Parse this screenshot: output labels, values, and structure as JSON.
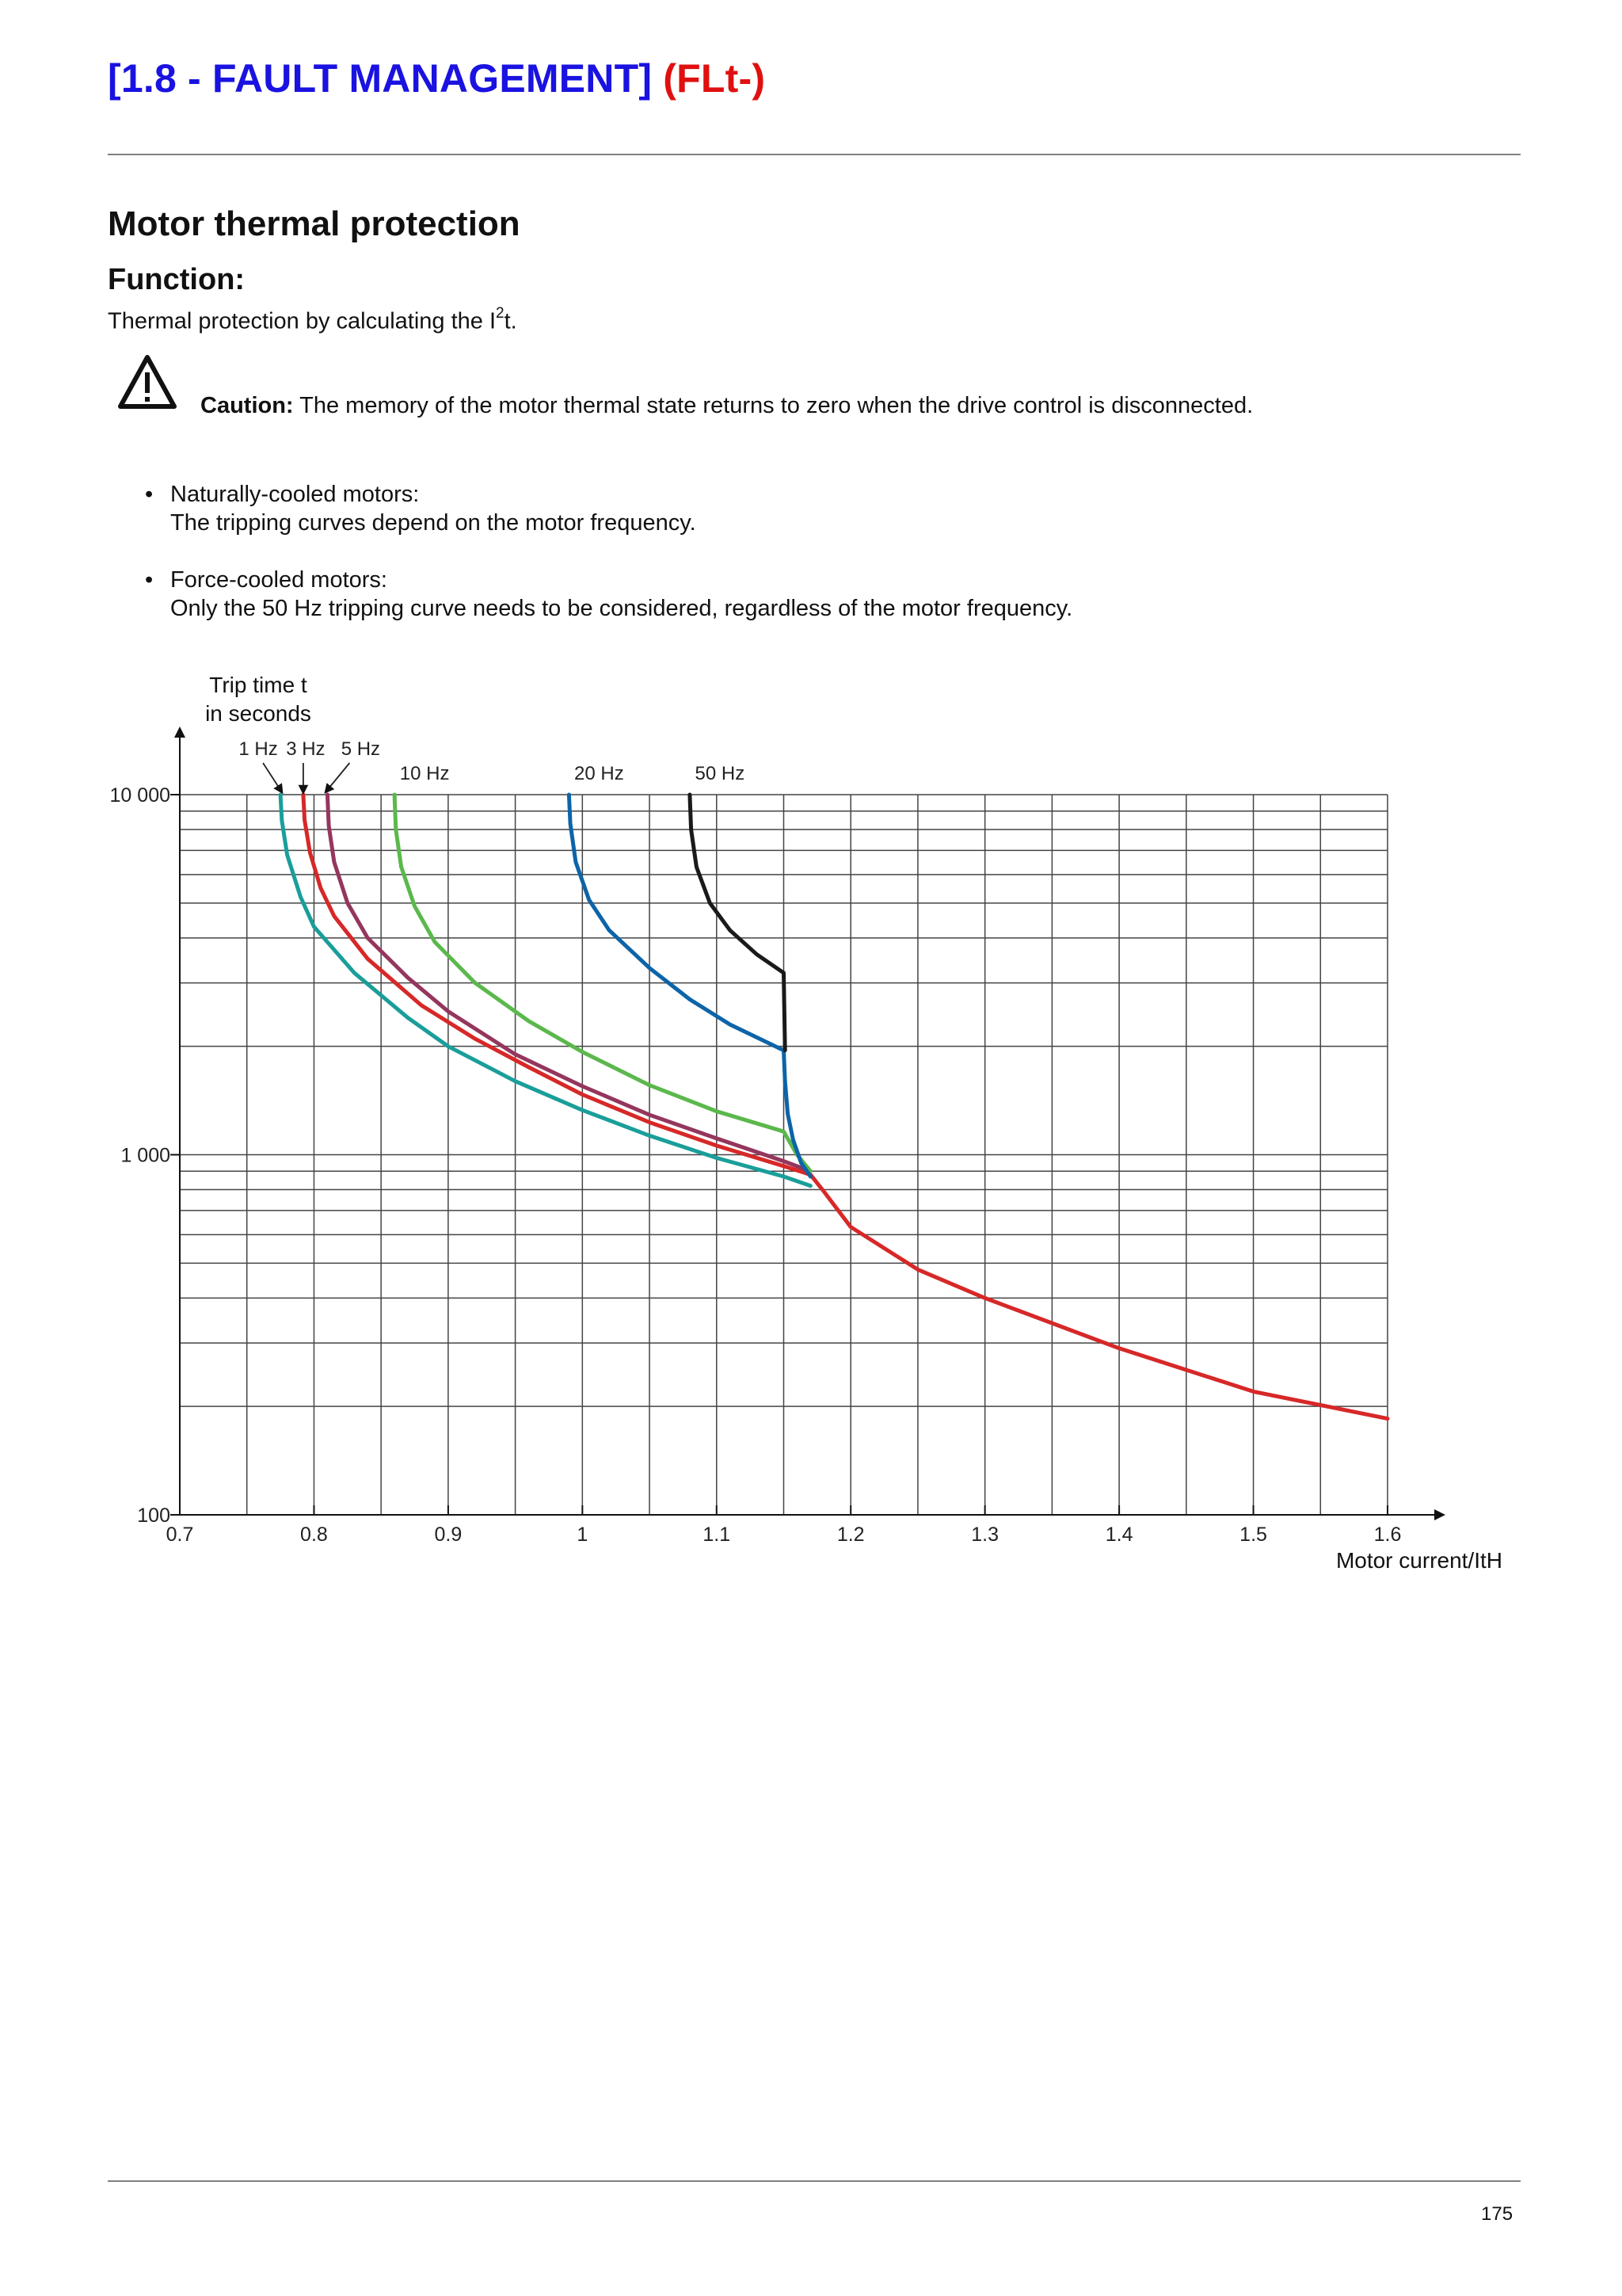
{
  "header": {
    "title_main": "[1.8 - FAULT MANAGEMENT]",
    "title_code": "(FLt-)"
  },
  "section": {
    "title": "Motor thermal protection",
    "function_heading": "Function:",
    "function_text_before": "Thermal protection by calculating the I",
    "function_text_sup": "2",
    "function_text_after": "t."
  },
  "caution": {
    "icon": "warning-triangle-icon",
    "label": "Caution:",
    "text": " The memory of the motor thermal state returns to zero when the drive control is disconnected."
  },
  "bullets": [
    {
      "title": "Naturally-cooled motors:",
      "text": "The tripping curves depend on the motor frequency."
    },
    {
      "title": "Force-cooled motors:",
      "text": "Only the 50 Hz tripping curve needs to be considered, regardless of the motor frequency."
    }
  ],
  "chart_data": {
    "type": "line",
    "ylabel_line1": "Trip time t",
    "ylabel_line2": "in seconds",
    "xlabel": "Motor current/ItH",
    "y_scale": "log",
    "xlim": [
      0.7,
      1.6
    ],
    "ylim": [
      100,
      10000
    ],
    "grid": true,
    "x_tick_labels": [
      "0.7",
      "0.8",
      "0.9",
      "1",
      "1.1",
      "1.2",
      "1.3",
      "1.4",
      "1.5",
      "1.6"
    ],
    "x_tick_values": [
      0.7,
      0.8,
      0.9,
      1.0,
      1.1,
      1.2,
      1.3,
      1.4,
      1.5,
      1.6
    ],
    "y_tick_labels": [
      "100",
      "1 000",
      "10 000"
    ],
    "y_tick_values": [
      100,
      1000,
      10000
    ],
    "series": [
      {
        "name": "1 Hz",
        "color": "#1a9e9a",
        "x": [
          0.775,
          0.776,
          0.78,
          0.79,
          0.8,
          0.83,
          0.87,
          0.9,
          0.95,
          1.0,
          1.05,
          1.1,
          1.15,
          1.17
        ],
        "y": [
          10000,
          8500,
          6800,
          5200,
          4300,
          3200,
          2400,
          2000,
          1600,
          1330,
          1130,
          980,
          870,
          820
        ]
      },
      {
        "name": "3 Hz",
        "color": "#d72828",
        "x": [
          0.792,
          0.793,
          0.797,
          0.805,
          0.815,
          0.84,
          0.88,
          0.92,
          0.96,
          1.0,
          1.05,
          1.1,
          1.15,
          1.17,
          1.18,
          1.2,
          1.25,
          1.3,
          1.4,
          1.5,
          1.6
        ],
        "y": [
          10000,
          8500,
          6900,
          5500,
          4600,
          3500,
          2600,
          2100,
          1750,
          1470,
          1230,
          1060,
          930,
          880,
          790,
          630,
          480,
          400,
          290,
          220,
          185
        ]
      },
      {
        "name": "5 Hz",
        "color": "#94365d",
        "x": [
          0.81,
          0.811,
          0.815,
          0.825,
          0.84,
          0.87,
          0.9,
          0.95,
          1.0,
          1.05,
          1.1,
          1.15,
          1.17
        ],
        "y": [
          10000,
          8200,
          6500,
          5000,
          4000,
          3100,
          2500,
          1900,
          1550,
          1290,
          1110,
          960,
          900
        ]
      },
      {
        "name": "10 Hz",
        "color": "#5bb84c",
        "x": [
          0.86,
          0.861,
          0.865,
          0.875,
          0.89,
          0.92,
          0.96,
          1.0,
          1.05,
          1.1,
          1.15,
          1.16,
          1.17
        ],
        "y": [
          10000,
          8000,
          6300,
          4900,
          3900,
          3000,
          2350,
          1930,
          1560,
          1320,
          1160,
          1000,
          900
        ]
      },
      {
        "name": "20 Hz",
        "color": "#0d64a8",
        "x": [
          0.99,
          0.991,
          0.995,
          1.005,
          1.02,
          1.05,
          1.08,
          1.11,
          1.15,
          1.151,
          1.153,
          1.157,
          1.163,
          1.17
        ],
        "y": [
          10000,
          8300,
          6500,
          5100,
          4200,
          3300,
          2700,
          2300,
          1950,
          1600,
          1300,
          1100,
          950,
          870
        ]
      },
      {
        "name": "50 Hz",
        "color": "#1a1a1a",
        "x": [
          1.08,
          1.081,
          1.085,
          1.095,
          1.11,
          1.13,
          1.15,
          1.151
        ],
        "y": [
          10000,
          8000,
          6300,
          5000,
          4200,
          3600,
          3200,
          1950
        ]
      }
    ]
  },
  "page_number": "175"
}
